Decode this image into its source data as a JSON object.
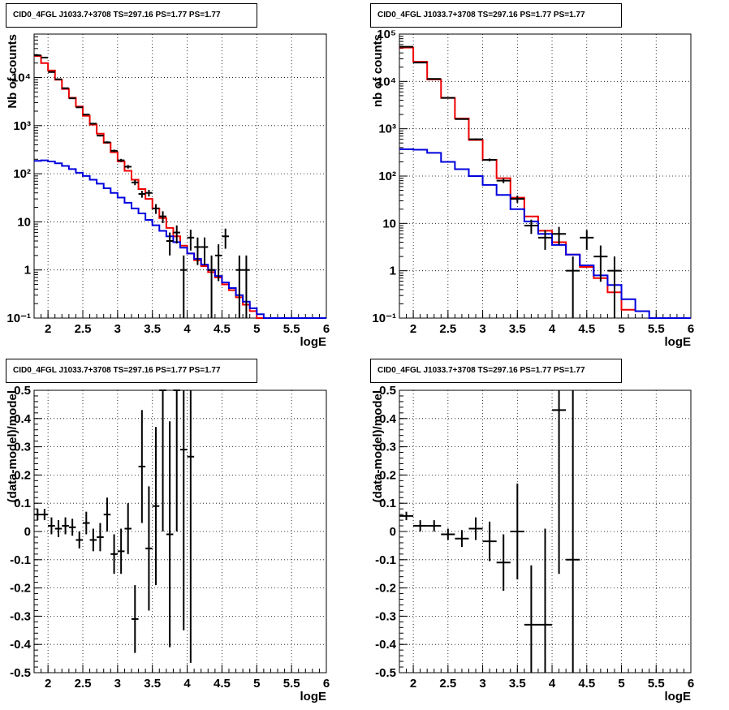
{
  "chart_data": [
    {
      "type": "histogram",
      "title": "CID0_4FGL J1033.7+3708 TS=297.16 PS=1.77 PS=1.77",
      "xlabel": "logE",
      "ylabel": "Nb of counts",
      "xlim": [
        1.8,
        6
      ],
      "ylim": [
        0.1,
        80000
      ],
      "log_y": true,
      "grid": true,
      "x_ticks": [
        "2",
        "2.5",
        "3",
        "3.5",
        "4",
        "4.5",
        "5",
        "5.5",
        "6"
      ],
      "y_ticks": [
        "10^-1",
        "1",
        "10",
        "10^2",
        "10^3",
        "10^4"
      ],
      "bin_width": 0.1,
      "series": [
        {
          "color": "#ee0000",
          "type": "step",
          "x": [
            1.8,
            1.9,
            2.0,
            2.1,
            2.2,
            2.3,
            2.4,
            2.5,
            2.6,
            2.7,
            2.8,
            2.9,
            3.0,
            3.1,
            3.2,
            3.3,
            3.4,
            3.5,
            3.6,
            3.7,
            3.8,
            3.9,
            4.0,
            4.1,
            4.2,
            4.3,
            4.4,
            4.5,
            4.6,
            4.7,
            4.8,
            4.9,
            5.0,
            5.1,
            5.2
          ],
          "values": [
            28000,
            20000,
            14000,
            9000,
            5800,
            3800,
            2500,
            1600,
            1050,
            680,
            440,
            280,
            180,
            115,
            75,
            48,
            30,
            19,
            12,
            7.5,
            5,
            3.2,
            2.2,
            1.6,
            1.2,
            0.9,
            0.7,
            0.5,
            0.38,
            0.27,
            0.19,
            0.14,
            0.1,
            0.1,
            0.1
          ]
        },
        {
          "color": "#0000dd",
          "type": "step",
          "x": [
            1.8,
            1.9,
            2.0,
            2.1,
            2.2,
            2.3,
            2.4,
            2.5,
            2.6,
            2.7,
            2.8,
            2.9,
            3.0,
            3.1,
            3.2,
            3.3,
            3.4,
            3.5,
            3.6,
            3.7,
            3.8,
            3.9,
            4.0,
            4.1,
            4.2,
            4.3,
            4.4,
            4.5,
            4.6,
            4.7,
            4.8,
            4.9,
            5.0,
            5.1,
            5.2,
            5.3,
            5.4,
            5.5,
            5.6,
            5.7,
            5.8,
            5.9
          ],
          "values": [
            185,
            190,
            180,
            165,
            145,
            125,
            105,
            90,
            75,
            62,
            50,
            40,
            32,
            25,
            19,
            15,
            11,
            8.5,
            6.5,
            5,
            3.8,
            2.9,
            2.2,
            1.7,
            1.3,
            1.0,
            0.75,
            0.55,
            0.42,
            0.3,
            0.22,
            0.16,
            0.12,
            0.1,
            0.1,
            0.1,
            0.1,
            0.1,
            0.1,
            0.1,
            0.1,
            0.1
          ]
        },
        {
          "color": "#000000",
          "type": "points",
          "x": [
            1.85,
            1.95,
            2.05,
            2.15,
            2.25,
            2.35,
            2.45,
            2.55,
            2.65,
            2.75,
            2.85,
            2.95,
            3.05,
            3.15,
            3.25,
            3.35,
            3.45,
            3.55,
            3.65,
            3.75,
            3.85,
            3.95,
            4.05,
            4.15,
            4.25,
            4.35,
            4.45,
            4.55,
            4.65,
            4.75,
            4.85,
            4.95
          ],
          "values": [
            29000,
            26000,
            13000,
            9200,
            6000,
            3700,
            2400,
            1700,
            1100,
            620,
            450,
            300,
            190,
            140,
            66,
            38,
            40,
            19,
            13,
            4,
            6,
            1,
            4.7,
            3,
            3,
            1,
            2,
            5,
            0,
            1,
            1,
            0
          ]
        }
      ]
    },
    {
      "type": "histogram",
      "title": "CID0_4FGL J1033.7+3708 TS=297.16 PS=1.77 PS=1.77",
      "xlabel": "logE",
      "ylabel": "nb of counts",
      "xlim": [
        1.8,
        6
      ],
      "ylim": [
        0.1,
        100000
      ],
      "log_y": true,
      "grid": true,
      "x_ticks": [
        "2",
        "2.5",
        "3",
        "3.5",
        "4",
        "4.5",
        "5",
        "5.5",
        "6"
      ],
      "y_ticks": [
        "10^-1",
        "1",
        "10",
        "10^2",
        "10^3",
        "10^4",
        "10^5"
      ],
      "bin_width": 0.2,
      "series": [
        {
          "color": "#ee0000",
          "type": "step",
          "x": [
            1.8,
            2.0,
            2.2,
            2.4,
            2.6,
            2.8,
            3.0,
            3.2,
            3.4,
            3.6,
            3.8,
            4.0,
            4.2,
            4.4,
            4.6,
            4.8,
            5.0
          ],
          "values": [
            52000,
            26000,
            11000,
            4500,
            1650,
            580,
            220,
            90,
            35,
            14,
            7,
            4,
            2.2,
            1.2,
            0.7,
            0.35,
            0.15
          ]
        },
        {
          "color": "#0000dd",
          "type": "step",
          "x": [
            1.8,
            2.0,
            2.2,
            2.4,
            2.6,
            2.8,
            3.0,
            3.2,
            3.4,
            3.6,
            3.8,
            4.0,
            4.2,
            4.4,
            4.6,
            4.8,
            5.0,
            5.2,
            5.4,
            5.6,
            5.8
          ],
          "values": [
            370,
            360,
            310,
            200,
            140,
            100,
            65,
            40,
            20,
            11,
            6,
            3.5,
            2.2,
            1.3,
            0.8,
            0.5,
            0.25,
            0.14,
            0.1,
            0.1,
            0.1
          ]
        },
        {
          "color": "#000000",
          "type": "points",
          "x": [
            1.9,
            2.1,
            2.3,
            2.5,
            2.7,
            2.9,
            3.1,
            3.3,
            3.5,
            3.7,
            3.9,
            4.1,
            4.3,
            4.5,
            4.7,
            4.9
          ],
          "values": [
            54000,
            25000,
            11300,
            4500,
            1600,
            600,
            220,
            80,
            33,
            9,
            5,
            6,
            1,
            5,
            2,
            1
          ]
        }
      ]
    },
    {
      "type": "scatter_errorbars",
      "title": "CID0_4FGL J1033.7+3708 TS=297.16 PS=1.77 PS=1.77",
      "xlabel": "logE",
      "ylabel": "(data-model)/model",
      "xlim": [
        1.8,
        6
      ],
      "ylim": [
        -0.5,
        0.5
      ],
      "grid": true,
      "x_ticks": [
        "2",
        "2.5",
        "3",
        "3.5",
        "4",
        "4.5",
        "5",
        "5.5",
        "6"
      ],
      "y_ticks": [
        "-0.5",
        "-0.4",
        "-0.3",
        "-0.2",
        "-0.1",
        "0",
        "0.1",
        "0.2",
        "0.3",
        "0.4",
        "0.5"
      ],
      "half_width": 0.05,
      "x": [
        1.85,
        1.95,
        2.05,
        2.15,
        2.25,
        2.35,
        2.45,
        2.55,
        2.65,
        2.75,
        2.85,
        2.95,
        3.05,
        3.15,
        3.25,
        3.35,
        3.45,
        3.55,
        3.65,
        3.75,
        3.85,
        3.95,
        4.05
      ],
      "values": [
        0.06,
        0.06,
        0.02,
        0.01,
        0.02,
        0.015,
        -0.03,
        0.03,
        -0.03,
        -0.02,
        0.06,
        -0.08,
        -0.07,
        0.01,
        -0.31,
        0.23,
        -0.06,
        0.09,
        0.5,
        -0.01,
        0.5,
        0.29,
        0.265
      ],
      "errors": [
        0.02,
        0.02,
        0.03,
        0.03,
        0.03,
        0.03,
        0.03,
        0.04,
        0.04,
        0.05,
        0.06,
        0.07,
        0.08,
        0.09,
        0.12,
        0.2,
        0.22,
        0.28,
        0.5,
        0.4,
        0.5,
        0.64,
        0.73
      ]
    },
    {
      "type": "scatter_errorbars",
      "title": "CID0_4FGL J1033.7+3708 TS=297.16 PS=1.77 PS=1.77",
      "xlabel": "logE",
      "ylabel": "(data-model)/model",
      "xlim": [
        1.8,
        6
      ],
      "ylim": [
        -0.5,
        0.5
      ],
      "grid": true,
      "x_ticks": [
        "2",
        "2.5",
        "3",
        "3.5",
        "4",
        "4.5",
        "5",
        "5.5",
        "6"
      ],
      "y_ticks": [
        "-0.5",
        "-0.4",
        "-0.3",
        "-0.2",
        "-0.1",
        "0",
        "0.1",
        "0.2",
        "0.3",
        "0.4",
        "0.5"
      ],
      "half_width": 0.1,
      "x": [
        1.9,
        2.1,
        2.3,
        2.5,
        2.7,
        2.9,
        3.1,
        3.3,
        3.5,
        3.7,
        3.9,
        4.1,
        4.3
      ],
      "values": [
        0.055,
        0.02,
        0.02,
        -0.01,
        -0.025,
        0.01,
        -0.035,
        -0.11,
        0.0,
        -0.33,
        -0.33,
        0.43,
        -0.1
      ],
      "errors": [
        0.015,
        0.02,
        0.02,
        0.02,
        0.03,
        0.04,
        0.07,
        0.1,
        0.17,
        0.21,
        0.34,
        0.58,
        0.6
      ]
    }
  ]
}
